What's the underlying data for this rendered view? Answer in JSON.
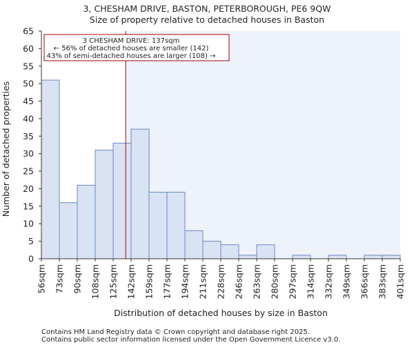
{
  "chart_data": {
    "type": "bar",
    "title": "3, CHESHAM DRIVE, BASTON, PETERBOROUGH, PE6 9QW",
    "subtitle": "Size of property relative to detached houses in Baston",
    "xlabel": "Distribution of detached houses by size in Baston",
    "ylabel": "Number of detached properties",
    "x_tick_labels": [
      "56sqm",
      "73sqm",
      "90sqm",
      "108sqm",
      "125sqm",
      "142sqm",
      "159sqm",
      "177sqm",
      "194sqm",
      "211sqm",
      "228sqm",
      "246sqm",
      "263sqm",
      "280sqm",
      "297sqm",
      "314sqm",
      "332sqm",
      "349sqm",
      "366sqm",
      "383sqm",
      "401sqm"
    ],
    "values": [
      51,
      16,
      21,
      31,
      33,
      37,
      19,
      19,
      8,
      5,
      4,
      1,
      4,
      0,
      1,
      0,
      1,
      0,
      1,
      1
    ],
    "ylim": [
      0,
      65
    ],
    "y_ticks": [
      0,
      5,
      10,
      15,
      20,
      25,
      30,
      35,
      40,
      45,
      50,
      55,
      60,
      65
    ],
    "grid": false,
    "property_marker_bin_position": 4.7,
    "annotation": {
      "line1": "3 CHESHAM DRIVE: 137sqm",
      "line2": "← 56% of detached houses are smaller (142)",
      "line3": "43% of semi-detached houses are larger (108) →"
    },
    "colors": {
      "bar_fill": "#dae3f3",
      "bar_stroke": "#6688c4",
      "highlight_fill": "#eef2fa",
      "marker_line": "#aa0000",
      "annotation_border": "#aa0000"
    }
  },
  "footer": {
    "line1": "Contains HM Land Registry data © Crown copyright and database right 2025.",
    "line2": "Contains public sector information licensed under the Open Government Licence v3.0."
  }
}
